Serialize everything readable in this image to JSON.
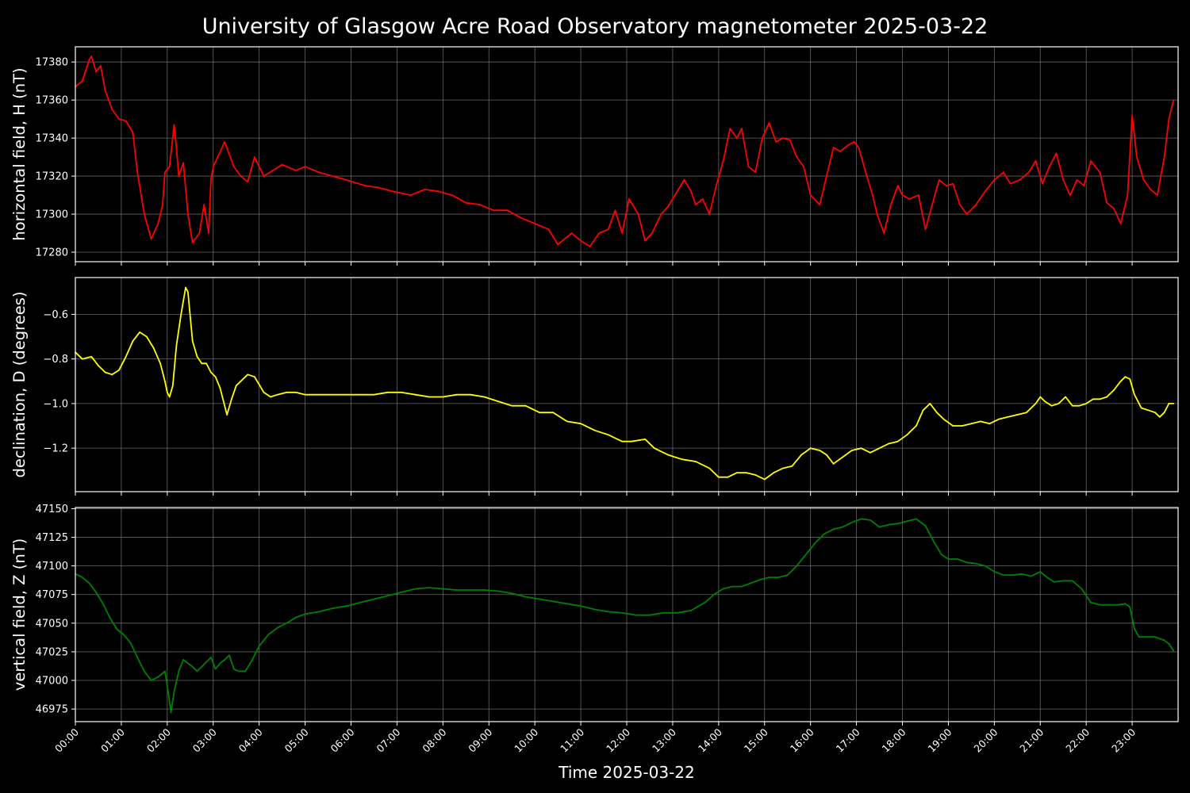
{
  "figure": {
    "title": "University of Glasgow Acre Road Observatory magnetometer 2025-03-22",
    "xlabel": "Time 2025-03-22",
    "background": "#000000",
    "grid_color": "#808080",
    "axis_color": "#ffffff"
  },
  "chart_data": [
    {
      "type": "line",
      "ylabel": "horizontal field, H (nT)",
      "color": "#ff0000",
      "xlim_hours": [
        0,
        24
      ],
      "ylim": [
        17275,
        17388
      ],
      "yticks": [
        17280,
        17300,
        17320,
        17340,
        17360,
        17380
      ],
      "ytick_labels": [
        "17280",
        "17300",
        "17320",
        "17340",
        "17360",
        "17380"
      ],
      "grid": true,
      "series": [
        {
          "x_hours": [
            0.0,
            0.15,
            0.3,
            0.35,
            0.45,
            0.55,
            0.65,
            0.8,
            0.95,
            1.1,
            1.25,
            1.35,
            1.5,
            1.65,
            1.8,
            1.9,
            1.95,
            2.05,
            2.15,
            2.2,
            2.25,
            2.35,
            2.45,
            2.55,
            2.7,
            2.8,
            2.9,
            2.95,
            3.0,
            3.1,
            3.25,
            3.45,
            3.6,
            3.75,
            3.9,
            4.1,
            4.3,
            4.5,
            4.8,
            5.0,
            5.3,
            5.6,
            5.9,
            6.3,
            6.6,
            6.9,
            7.3,
            7.6,
            7.9,
            8.2,
            8.5,
            8.8,
            9.1,
            9.4,
            9.7,
            10.0,
            10.3,
            10.5,
            10.8,
            11.0,
            11.2,
            11.4,
            11.6,
            11.75,
            11.9,
            12.05,
            12.25,
            12.4,
            12.55,
            12.75,
            12.9,
            13.05,
            13.25,
            13.4,
            13.5,
            13.65,
            13.8,
            13.95,
            14.1,
            14.25,
            14.4,
            14.5,
            14.65,
            14.8,
            14.95,
            15.1,
            15.25,
            15.4,
            15.55,
            15.7,
            15.85,
            16.0,
            16.2,
            16.35,
            16.5,
            16.65,
            16.8,
            16.95,
            17.05,
            17.2,
            17.35,
            17.45,
            17.6,
            17.75,
            17.9,
            18.0,
            18.15,
            18.35,
            18.5,
            18.65,
            18.8,
            18.95,
            19.1,
            19.25,
            19.4,
            19.6,
            19.8,
            20.0,
            20.2,
            20.35,
            20.55,
            20.75,
            20.9,
            21.05,
            21.2,
            21.35,
            21.5,
            21.65,
            21.8,
            21.95,
            22.1,
            22.3,
            22.45,
            22.6,
            22.75,
            22.9,
            23.0,
            23.1,
            23.25,
            23.4,
            23.55,
            23.7,
            23.8,
            23.9
          ],
          "y": [
            17367,
            17370,
            17381,
            17383,
            17375,
            17378,
            17365,
            17355,
            17350,
            17349,
            17343,
            17322,
            17300,
            17287,
            17295,
            17305,
            17322,
            17325,
            17347,
            17335,
            17320,
            17327,
            17300,
            17285,
            17290,
            17305,
            17290,
            17318,
            17325,
            17330,
            17338,
            17325,
            17320,
            17317,
            17330,
            17320,
            17323,
            17326,
            17323,
            17325,
            17322,
            17320,
            17318,
            17315,
            17314,
            17312,
            17310,
            17313,
            17312,
            17310,
            17306,
            17305,
            17302,
            17302,
            17298,
            17295,
            17292,
            17284,
            17290,
            17286,
            17283,
            17290,
            17292,
            17302,
            17290,
            17308,
            17300,
            17286,
            17290,
            17300,
            17304,
            17310,
            17318,
            17312,
            17305,
            17308,
            17300,
            17315,
            17328,
            17345,
            17340,
            17345,
            17325,
            17322,
            17340,
            17348,
            17338,
            17340,
            17339,
            17330,
            17325,
            17310,
            17305,
            17320,
            17335,
            17333,
            17336,
            17338,
            17335,
            17322,
            17310,
            17300,
            17290,
            17305,
            17315,
            17310,
            17308,
            17310,
            17292,
            17305,
            17318,
            17315,
            17316,
            17305,
            17300,
            17305,
            17312,
            17318,
            17322,
            17316,
            17318,
            17322,
            17328,
            17316,
            17325,
            17332,
            17318,
            17310,
            17318,
            17315,
            17328,
            17322,
            17306,
            17303,
            17295,
            17310,
            17352,
            17330,
            17318,
            17313,
            17310,
            17330,
            17350,
            17360
          ]
        }
      ]
    },
    {
      "type": "line",
      "ylabel": "declination, D (degrees)",
      "color": "#ffff00",
      "xlim_hours": [
        0,
        24
      ],
      "ylim": [
        -1.395,
        -0.435
      ],
      "yticks": [
        -0.6,
        -0.8,
        -1.0,
        -1.2
      ],
      "ytick_labels": [
        "−0.6",
        "−0.8",
        "−1.0",
        "−1.2"
      ],
      "grid": true,
      "series": [
        {
          "x_hours": [
            0.0,
            0.15,
            0.35,
            0.5,
            0.65,
            0.8,
            0.95,
            1.1,
            1.25,
            1.4,
            1.55,
            1.7,
            1.85,
            1.95,
            2.0,
            2.05,
            2.12,
            2.2,
            2.3,
            2.4,
            2.45,
            2.55,
            2.65,
            2.75,
            2.85,
            2.95,
            3.05,
            3.15,
            3.3,
            3.4,
            3.5,
            3.6,
            3.75,
            3.9,
            4.1,
            4.25,
            4.4,
            4.6,
            4.8,
            5.0,
            5.3,
            5.6,
            5.9,
            6.2,
            6.5,
            6.8,
            7.1,
            7.4,
            7.7,
            8.0,
            8.3,
            8.6,
            8.9,
            9.2,
            9.5,
            9.8,
            10.1,
            10.4,
            10.7,
            11.0,
            11.3,
            11.6,
            11.9,
            12.1,
            12.4,
            12.6,
            12.9,
            13.2,
            13.5,
            13.8,
            14.0,
            14.2,
            14.4,
            14.6,
            14.8,
            15.0,
            15.2,
            15.4,
            15.6,
            15.8,
            16.0,
            16.2,
            16.35,
            16.5,
            16.7,
            16.9,
            17.1,
            17.3,
            17.5,
            17.7,
            17.9,
            18.1,
            18.3,
            18.45,
            18.6,
            18.75,
            18.9,
            19.1,
            19.3,
            19.5,
            19.7,
            19.9,
            20.1,
            20.3,
            20.5,
            20.7,
            20.9,
            21.0,
            21.1,
            21.25,
            21.4,
            21.55,
            21.7,
            21.85,
            22.0,
            22.15,
            22.3,
            22.45,
            22.6,
            22.75,
            22.85,
            22.95,
            23.05,
            23.2,
            23.35,
            23.5,
            23.6,
            23.7,
            23.8,
            23.9
          ],
          "y": [
            -0.77,
            -0.8,
            -0.79,
            -0.83,
            -0.86,
            -0.87,
            -0.85,
            -0.79,
            -0.72,
            -0.68,
            -0.7,
            -0.75,
            -0.82,
            -0.9,
            -0.95,
            -0.97,
            -0.92,
            -0.74,
            -0.6,
            -0.48,
            -0.5,
            -0.72,
            -0.79,
            -0.82,
            -0.82,
            -0.86,
            -0.88,
            -0.93,
            -1.05,
            -0.98,
            -0.92,
            -0.9,
            -0.87,
            -0.88,
            -0.95,
            -0.97,
            -0.96,
            -0.95,
            -0.95,
            -0.96,
            -0.96,
            -0.96,
            -0.96,
            -0.96,
            -0.96,
            -0.95,
            -0.95,
            -0.96,
            -0.97,
            -0.97,
            -0.96,
            -0.96,
            -0.97,
            -0.99,
            -1.01,
            -1.01,
            -1.04,
            -1.04,
            -1.08,
            -1.09,
            -1.12,
            -1.14,
            -1.17,
            -1.17,
            -1.16,
            -1.2,
            -1.23,
            -1.25,
            -1.26,
            -1.29,
            -1.33,
            -1.33,
            -1.31,
            -1.31,
            -1.32,
            -1.34,
            -1.31,
            -1.29,
            -1.28,
            -1.23,
            -1.2,
            -1.21,
            -1.23,
            -1.27,
            -1.24,
            -1.21,
            -1.2,
            -1.22,
            -1.2,
            -1.18,
            -1.17,
            -1.14,
            -1.1,
            -1.03,
            -1.0,
            -1.04,
            -1.07,
            -1.1,
            -1.1,
            -1.09,
            -1.08,
            -1.09,
            -1.07,
            -1.06,
            -1.05,
            -1.04,
            -1.0,
            -0.97,
            -0.99,
            -1.01,
            -1.0,
            -0.97,
            -1.01,
            -1.01,
            -1.0,
            -0.98,
            -0.98,
            -0.97,
            -0.94,
            -0.9,
            -0.88,
            -0.89,
            -0.96,
            -1.02,
            -1.03,
            -1.04,
            -1.06,
            -1.04,
            -1.0,
            -1.0
          ]
        }
      ]
    },
    {
      "type": "line",
      "ylabel": "vertical field, Z (nT)",
      "color": "#008000",
      "xlim_hours": [
        0,
        24
      ],
      "ylim": [
        46964,
        47151
      ],
      "yticks": [
        46975,
        47000,
        47025,
        47050,
        47075,
        47100,
        47125,
        47150
      ],
      "ytick_labels": [
        "46975",
        "47000",
        "47025",
        "47050",
        "47075",
        "47100",
        "47125",
        "47150"
      ],
      "grid": true,
      "series": [
        {
          "x_hours": [
            0.0,
            0.15,
            0.3,
            0.45,
            0.6,
            0.75,
            0.9,
            1.05,
            1.2,
            1.35,
            1.5,
            1.65,
            1.8,
            1.95,
            2.02,
            2.08,
            2.15,
            2.25,
            2.35,
            2.45,
            2.55,
            2.65,
            2.75,
            2.85,
            2.95,
            3.05,
            3.15,
            3.25,
            3.35,
            3.45,
            3.55,
            3.7,
            3.85,
            4.0,
            4.2,
            4.4,
            4.6,
            4.8,
            5.0,
            5.3,
            5.6,
            5.9,
            6.2,
            6.5,
            6.8,
            7.1,
            7.4,
            7.7,
            8.0,
            8.3,
            8.6,
            8.9,
            9.2,
            9.5,
            9.8,
            10.1,
            10.4,
            10.7,
            11.0,
            11.3,
            11.6,
            11.9,
            12.2,
            12.5,
            12.8,
            13.1,
            13.4,
            13.7,
            13.9,
            14.1,
            14.3,
            14.5,
            14.7,
            14.9,
            15.1,
            15.3,
            15.5,
            15.7,
            15.9,
            16.1,
            16.3,
            16.5,
            16.7,
            16.9,
            17.1,
            17.3,
            17.5,
            17.7,
            17.9,
            18.1,
            18.3,
            18.5,
            18.7,
            18.85,
            19.0,
            19.2,
            19.4,
            19.6,
            19.8,
            20.0,
            20.2,
            20.4,
            20.6,
            20.8,
            21.0,
            21.15,
            21.3,
            21.5,
            21.7,
            21.9,
            22.1,
            22.3,
            22.5,
            22.7,
            22.85,
            22.95,
            23.05,
            23.15,
            23.3,
            23.5,
            23.7,
            23.8,
            23.9
          ],
          "y": [
            47093,
            47090,
            47085,
            47077,
            47067,
            47055,
            47045,
            47040,
            47033,
            47020,
            47008,
            47000,
            47003,
            47008,
            46990,
            46972,
            46990,
            47008,
            47018,
            47015,
            47012,
            47008,
            47012,
            47016,
            47020,
            47010,
            47015,
            47018,
            47022,
            47010,
            47008,
            47008,
            47018,
            47030,
            47040,
            47046,
            47050,
            47055,
            47058,
            47060,
            47063,
            47065,
            47068,
            47071,
            47074,
            47077,
            47080,
            47081,
            47080,
            47079,
            47079,
            47079,
            47078,
            47076,
            47073,
            47071,
            47069,
            47067,
            47065,
            47062,
            47060,
            47059,
            47057,
            47057,
            47059,
            47059,
            47061,
            47068,
            47075,
            47080,
            47082,
            47082,
            47085,
            47088,
            47090,
            47090,
            47092,
            47100,
            47110,
            47120,
            47128,
            47132,
            47134,
            47138,
            47141,
            47140,
            47134,
            47136,
            47137,
            47139,
            47141,
            47135,
            47120,
            47110,
            47106,
            47106,
            47103,
            47102,
            47100,
            47095,
            47092,
            47092,
            47093,
            47091,
            47095,
            47090,
            47086,
            47087,
            47087,
            47080,
            47068,
            47066,
            47066,
            47066,
            47067,
            47064,
            47045,
            47038,
            47038,
            47038,
            47035,
            47032,
            47026
          ]
        }
      ]
    }
  ],
  "x_axis": {
    "tick_labels": [
      "00:00",
      "01:00",
      "02:00",
      "03:00",
      "04:00",
      "05:00",
      "06:00",
      "07:00",
      "08:00",
      "09:00",
      "10:00",
      "11:00",
      "12:00",
      "13:00",
      "14:00",
      "15:00",
      "16:00",
      "17:00",
      "18:00",
      "19:00",
      "20:00",
      "21:00",
      "22:00",
      "23:00"
    ]
  }
}
